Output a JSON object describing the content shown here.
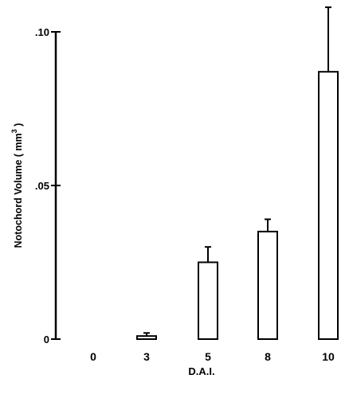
{
  "chart_data": {
    "type": "bar",
    "title": "",
    "xlabel": "D.A.I.",
    "ylabel": "Notochord Volume  ( mm 3 )",
    "ylabel_parts": {
      "text": "Notochord Volume  ( mm",
      "superscript": "3",
      "closing": " )"
    },
    "categories": [
      "0",
      "3",
      "5",
      "8",
      "10"
    ],
    "values": [
      0,
      0.001,
      0.025,
      0.035,
      0.087
    ],
    "errors": [
      0,
      0.001,
      0.005,
      0.004,
      0.021
    ],
    "ylim": [
      0,
      0.1
    ],
    "yticks": [
      {
        "value": 0,
        "label": "0"
      },
      {
        "value": 0.05,
        "label": ".05"
      },
      {
        "value": 0.1,
        "label": ".10"
      }
    ],
    "grid": false,
    "legend": "none",
    "colors": {
      "bar_fill": "#ffffff",
      "bar_stroke": "#000000",
      "axis": "#000000"
    }
  }
}
